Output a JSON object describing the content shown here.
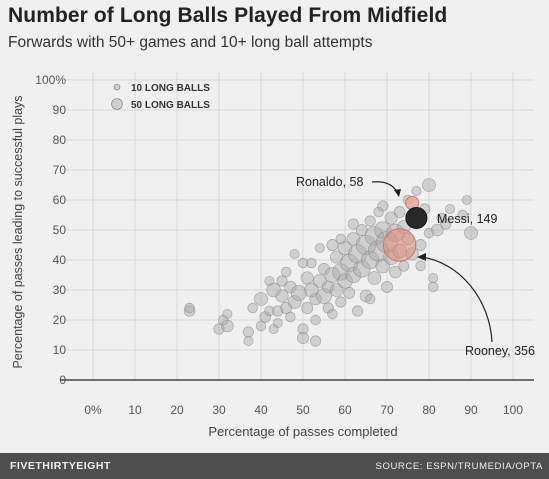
{
  "header": {
    "title": "Number of Long Balls Played From Midfield",
    "subtitle": "Forwards with 50+ games and 10+ long ball attempts"
  },
  "footer": {
    "logo": "FIVETHIRTYEIGHT",
    "source": "SOURCE: ESPN/TRUMEDIA/OPTA"
  },
  "colors": {
    "background": "#f0f0f0",
    "grid": "#d8d8d8",
    "bubble": "#a9a9a9",
    "highlight_ronaldo": "#e8a89a",
    "highlight_rooney": "#e08878",
    "highlight_messi": "#1e1e1e",
    "footer_bg": "#4e4e4e"
  },
  "chart_data": {
    "type": "scatter",
    "title": "Number of Long Balls Played From Midfield",
    "subtitle": "Forwards with 50+ games and 10+ long ball attempts",
    "xlabel": "Percentage of passes completed",
    "ylabel": "Percentage of passes leading to successful plays",
    "xlim": [
      -5,
      105
    ],
    "ylim": [
      0,
      100
    ],
    "x_ticks": [
      "0%",
      "10",
      "20",
      "30",
      "40",
      "50",
      "60",
      "70",
      "80",
      "90",
      "100"
    ],
    "x_tick_values": [
      0,
      10,
      20,
      30,
      40,
      50,
      60,
      70,
      80,
      90,
      100
    ],
    "y_ticks": [
      "0",
      "10",
      "20",
      "30",
      "40",
      "50",
      "60",
      "70",
      "80",
      "90",
      "100%"
    ],
    "y_tick_values": [
      0,
      10,
      20,
      30,
      40,
      50,
      60,
      70,
      80,
      90,
      100
    ],
    "grid": true,
    "size_legend": {
      "placement": "top-left",
      "entries": [
        {
          "label": "10 LONG BALLS",
          "value": 10
        },
        {
          "label": "50 LONG BALLS",
          "value": 50
        }
      ]
    },
    "highlighted": [
      {
        "name": "Ronaldo",
        "label": "Ronaldo, 58",
        "x": 76,
        "y": 59,
        "long_balls": 58
      },
      {
        "name": "Rooney",
        "label": "Rooney, 356",
        "x": 73,
        "y": 45,
        "long_balls": 356
      },
      {
        "name": "Messi",
        "label": "Messi, 149",
        "x": 77,
        "y": 54,
        "long_balls": 149
      }
    ],
    "points": [
      {
        "x": 23,
        "y": 23,
        "long_balls": 15
      },
      {
        "x": 23,
        "y": 24,
        "long_balls": 12
      },
      {
        "x": 30,
        "y": 17,
        "long_balls": 14
      },
      {
        "x": 31,
        "y": 20,
        "long_balls": 12
      },
      {
        "x": 32,
        "y": 18,
        "long_balls": 18
      },
      {
        "x": 32,
        "y": 22,
        "long_balls": 11
      },
      {
        "x": 37,
        "y": 16,
        "long_balls": 14
      },
      {
        "x": 37,
        "y": 13,
        "long_balls": 11
      },
      {
        "x": 38,
        "y": 24,
        "long_balls": 12
      },
      {
        "x": 40,
        "y": 18,
        "long_balls": 12
      },
      {
        "x": 40,
        "y": 27,
        "long_balls": 22
      },
      {
        "x": 41,
        "y": 21,
        "long_balls": 15
      },
      {
        "x": 42,
        "y": 23,
        "long_balls": 12
      },
      {
        "x": 42,
        "y": 33,
        "long_balls": 11
      },
      {
        "x": 43,
        "y": 30,
        "long_balls": 25
      },
      {
        "x": 43,
        "y": 17,
        "long_balls": 11
      },
      {
        "x": 44,
        "y": 23,
        "long_balls": 14
      },
      {
        "x": 45,
        "y": 28,
        "long_balls": 20
      },
      {
        "x": 46,
        "y": 24,
        "long_balls": 16
      },
      {
        "x": 46,
        "y": 36,
        "long_balls": 12
      },
      {
        "x": 47,
        "y": 31,
        "long_balls": 18
      },
      {
        "x": 47,
        "y": 21,
        "long_balls": 12
      },
      {
        "x": 48,
        "y": 26,
        "long_balls": 22
      },
      {
        "x": 48,
        "y": 42,
        "long_balls": 11
      },
      {
        "x": 49,
        "y": 29,
        "long_balls": 30
      },
      {
        "x": 50,
        "y": 17,
        "long_balls": 14
      },
      {
        "x": 50,
        "y": 14,
        "long_balls": 16
      },
      {
        "x": 51,
        "y": 34,
        "long_balls": 20
      },
      {
        "x": 51,
        "y": 24,
        "long_balls": 16
      },
      {
        "x": 52,
        "y": 30,
        "long_balls": 25
      },
      {
        "x": 52,
        "y": 39,
        "long_balls": 12
      },
      {
        "x": 53,
        "y": 27,
        "long_balls": 18
      },
      {
        "x": 53,
        "y": 20,
        "long_balls": 12
      },
      {
        "x": 54,
        "y": 33,
        "long_balls": 22
      },
      {
        "x": 54,
        "y": 44,
        "long_balls": 11
      },
      {
        "x": 55,
        "y": 28,
        "long_balls": 30
      },
      {
        "x": 55,
        "y": 37,
        "long_balls": 16
      },
      {
        "x": 56,
        "y": 31,
        "long_balls": 18
      },
      {
        "x": 56,
        "y": 24,
        "long_balls": 14
      },
      {
        "x": 57,
        "y": 35,
        "long_balls": 30
      },
      {
        "x": 57,
        "y": 22,
        "long_balls": 12
      },
      {
        "x": 58,
        "y": 41,
        "long_balls": 20
      },
      {
        "x": 58,
        "y": 30,
        "long_balls": 22
      },
      {
        "x": 59,
        "y": 36,
        "long_balls": 35
      },
      {
        "x": 59,
        "y": 26,
        "long_balls": 14
      },
      {
        "x": 60,
        "y": 44,
        "long_balls": 25
      },
      {
        "x": 60,
        "y": 33,
        "long_balls": 28
      },
      {
        "x": 61,
        "y": 39,
        "long_balls": 40
      },
      {
        "x": 61,
        "y": 29,
        "long_balls": 16
      },
      {
        "x": 62,
        "y": 47,
        "long_balls": 22
      },
      {
        "x": 62,
        "y": 35,
        "long_balls": 30
      },
      {
        "x": 63,
        "y": 42,
        "long_balls": 45
      },
      {
        "x": 63,
        "y": 23,
        "long_balls": 14
      },
      {
        "x": 64,
        "y": 50,
        "long_balls": 16
      },
      {
        "x": 64,
        "y": 37,
        "long_balls": 35
      },
      {
        "x": 65,
        "y": 45,
        "long_balls": 50
      },
      {
        "x": 65,
        "y": 28,
        "long_balls": 18
      },
      {
        "x": 66,
        "y": 40,
        "long_balls": 40
      },
      {
        "x": 66,
        "y": 53,
        "long_balls": 14
      },
      {
        "x": 67,
        "y": 48,
        "long_balls": 45
      },
      {
        "x": 67,
        "y": 34,
        "long_balls": 22
      },
      {
        "x": 68,
        "y": 43,
        "long_balls": 55
      },
      {
        "x": 68,
        "y": 56,
        "long_balls": 12
      },
      {
        "x": 69,
        "y": 50,
        "long_balls": 35
      },
      {
        "x": 69,
        "y": 38,
        "long_balls": 25
      },
      {
        "x": 70,
        "y": 46,
        "long_balls": 60
      },
      {
        "x": 70,
        "y": 31,
        "long_balls": 16
      },
      {
        "x": 71,
        "y": 54,
        "long_balls": 20
      },
      {
        "x": 71,
        "y": 41,
        "long_balls": 30
      },
      {
        "x": 72,
        "y": 49,
        "long_balls": 40
      },
      {
        "x": 72,
        "y": 36,
        "long_balls": 18
      },
      {
        "x": 73,
        "y": 56,
        "long_balls": 16
      },
      {
        "x": 73,
        "y": 43,
        "long_balls": 25
      },
      {
        "x": 74,
        "y": 51,
        "long_balls": 22
      },
      {
        "x": 74,
        "y": 38,
        "long_balls": 14
      },
      {
        "x": 75,
        "y": 47,
        "long_balls": 18
      },
      {
        "x": 75,
        "y": 60,
        "long_balls": 12
      },
      {
        "x": 76,
        "y": 42,
        "long_balls": 20
      },
      {
        "x": 77,
        "y": 63,
        "long_balls": 11
      },
      {
        "x": 78,
        "y": 45,
        "long_balls": 16
      },
      {
        "x": 78,
        "y": 38,
        "long_balls": 12
      },
      {
        "x": 79,
        "y": 57,
        "long_balls": 14
      },
      {
        "x": 80,
        "y": 65,
        "long_balls": 22
      },
      {
        "x": 80,
        "y": 49,
        "long_balls": 12
      },
      {
        "x": 81,
        "y": 34,
        "long_balls": 11
      },
      {
        "x": 81,
        "y": 31,
        "long_balls": 12
      },
      {
        "x": 82,
        "y": 50,
        "long_balls": 18
      },
      {
        "x": 83,
        "y": 54,
        "long_balls": 12
      },
      {
        "x": 84,
        "y": 52,
        "long_balls": 14
      },
      {
        "x": 85,
        "y": 57,
        "long_balls": 11
      },
      {
        "x": 88,
        "y": 55,
        "long_balls": 12
      },
      {
        "x": 89,
        "y": 60,
        "long_balls": 11
      },
      {
        "x": 90,
        "y": 49,
        "long_balls": 22
      },
      {
        "x": 44,
        "y": 19,
        "long_balls": 11
      },
      {
        "x": 53,
        "y": 13,
        "long_balls": 14
      },
      {
        "x": 50,
        "y": 39,
        "long_balls": 12
      },
      {
        "x": 57,
        "y": 45,
        "long_balls": 16
      },
      {
        "x": 62,
        "y": 52,
        "long_balls": 14
      },
      {
        "x": 66,
        "y": 27,
        "long_balls": 12
      },
      {
        "x": 69,
        "y": 58,
        "long_balls": 14
      },
      {
        "x": 59,
        "y": 47,
        "long_balls": 12
      },
      {
        "x": 45,
        "y": 33,
        "long_balls": 14
      }
    ]
  }
}
